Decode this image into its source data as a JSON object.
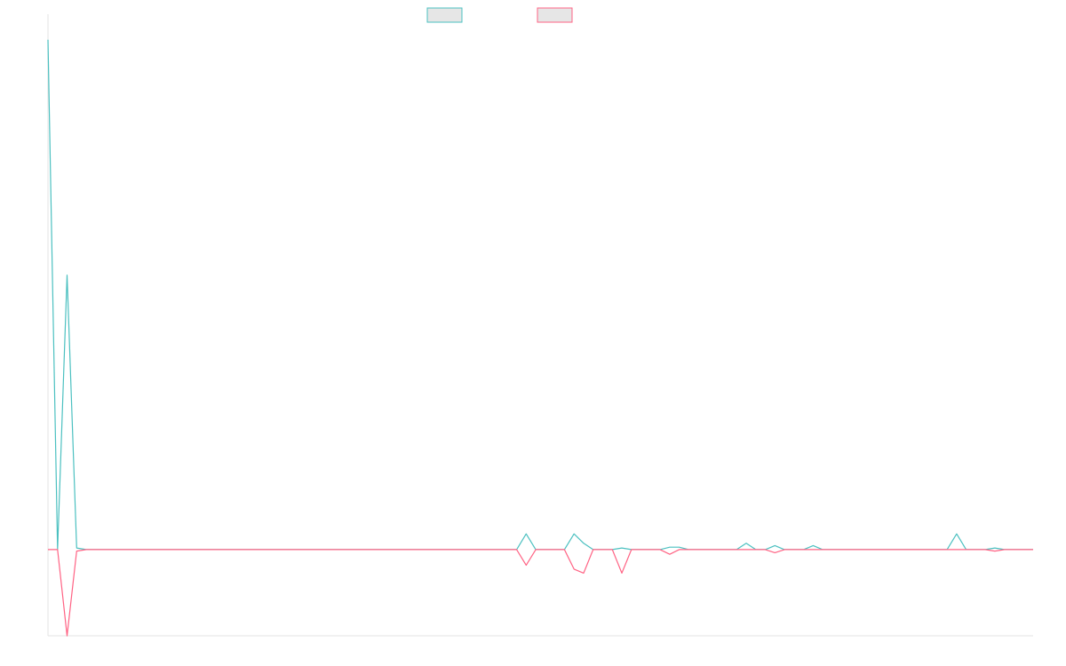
{
  "chart_data": {
    "type": "line",
    "title": "",
    "xlabel": "",
    "ylabel": "",
    "ylim": [
      -11,
      66
    ],
    "legend_position": "top-center",
    "grid": false,
    "x": [
      0,
      1,
      2,
      3,
      4,
      5,
      6,
      7,
      8,
      9,
      10,
      11,
      12,
      13,
      14,
      15,
      16,
      17,
      18,
      19,
      20,
      21,
      22,
      23,
      24,
      25,
      26,
      27,
      28,
      29,
      30,
      31,
      32,
      33,
      34,
      35,
      36,
      37,
      38,
      39,
      40,
      41,
      42,
      43,
      44,
      45,
      46,
      47,
      48,
      49,
      50,
      51,
      52,
      53,
      54,
      55,
      56,
      57,
      58,
      59,
      60,
      61,
      62,
      63,
      64,
      65,
      66,
      67,
      68,
      69,
      70,
      71,
      72,
      73,
      74,
      75,
      76,
      77,
      78,
      79,
      80,
      81,
      82,
      83,
      84,
      85,
      86,
      87,
      88,
      89,
      90,
      91,
      92,
      93,
      94,
      95,
      96,
      97,
      98,
      99,
      100,
      101,
      102,
      103
    ],
    "series": [
      {
        "color": "#4bc0c0",
        "values": [
          65,
          0,
          35,
          0.2,
          0,
          0,
          0,
          0,
          0,
          0,
          0,
          0,
          0,
          0,
          0,
          0,
          0,
          0,
          0,
          0,
          0,
          0,
          0,
          0,
          0,
          0,
          0,
          0,
          0,
          0,
          0,
          0,
          0,
          0,
          0,
          0,
          0,
          0,
          0,
          0,
          0,
          0,
          0,
          0,
          0,
          0,
          0,
          0,
          0,
          0,
          2,
          0,
          0,
          0,
          0,
          2,
          0.8,
          0,
          0,
          0,
          0.2,
          0,
          0,
          0,
          0,
          0.3,
          0.3,
          0,
          0,
          0,
          0,
          0,
          0,
          0.8,
          0,
          0,
          0.5,
          0,
          0,
          0,
          0.5,
          0,
          0,
          0,
          0,
          0,
          0,
          0,
          0,
          0,
          0,
          0,
          0,
          0,
          0,
          2,
          0,
          0,
          0,
          0.2,
          0,
          0,
          0,
          0
        ]
      },
      {
        "color": "#ff6384",
        "values": [
          0,
          0,
          -11,
          -0.2,
          0,
          0,
          0,
          0,
          0,
          0,
          0,
          0,
          0,
          0,
          0,
          0,
          0,
          0,
          0,
          0,
          0,
          0,
          0,
          0,
          0,
          0,
          0,
          0,
          0,
          0,
          0,
          0,
          0,
          0,
          0,
          0,
          0,
          0,
          0,
          0,
          0,
          0,
          0,
          0,
          0,
          0,
          0,
          0,
          0,
          0,
          -2,
          0,
          0,
          0,
          0,
          -2.5,
          -3,
          0,
          0,
          0,
          -3,
          0,
          0,
          0,
          0,
          -0.6,
          0,
          0,
          0,
          0,
          0,
          0,
          0,
          0,
          0,
          0,
          -0.4,
          0,
          0,
          0,
          0,
          0,
          0,
          0,
          0,
          0,
          0,
          0,
          0,
          0,
          0,
          0,
          0,
          0,
          0,
          0,
          0,
          0,
          0,
          -0.2,
          0,
          0,
          0,
          0
        ]
      }
    ]
  }
}
